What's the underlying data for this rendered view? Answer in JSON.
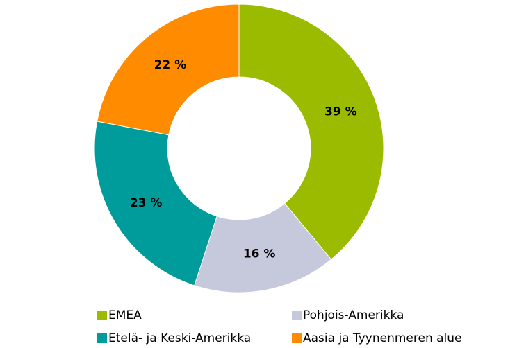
{
  "chart_data": {
    "type": "donut",
    "categories": [
      "EMEA",
      "Pohjois-Amerikka",
      "Etelä- ja Keski-Amerikka",
      "Aasia ja Tyynenmeren alue"
    ],
    "values": [
      39,
      16,
      23,
      22
    ],
    "value_labels": [
      "39 %",
      "16 %",
      "23 %",
      "22 %"
    ],
    "colors": [
      "#9bbb00",
      "#c6c8dc",
      "#009c9c",
      "#ff8c00"
    ]
  }
}
